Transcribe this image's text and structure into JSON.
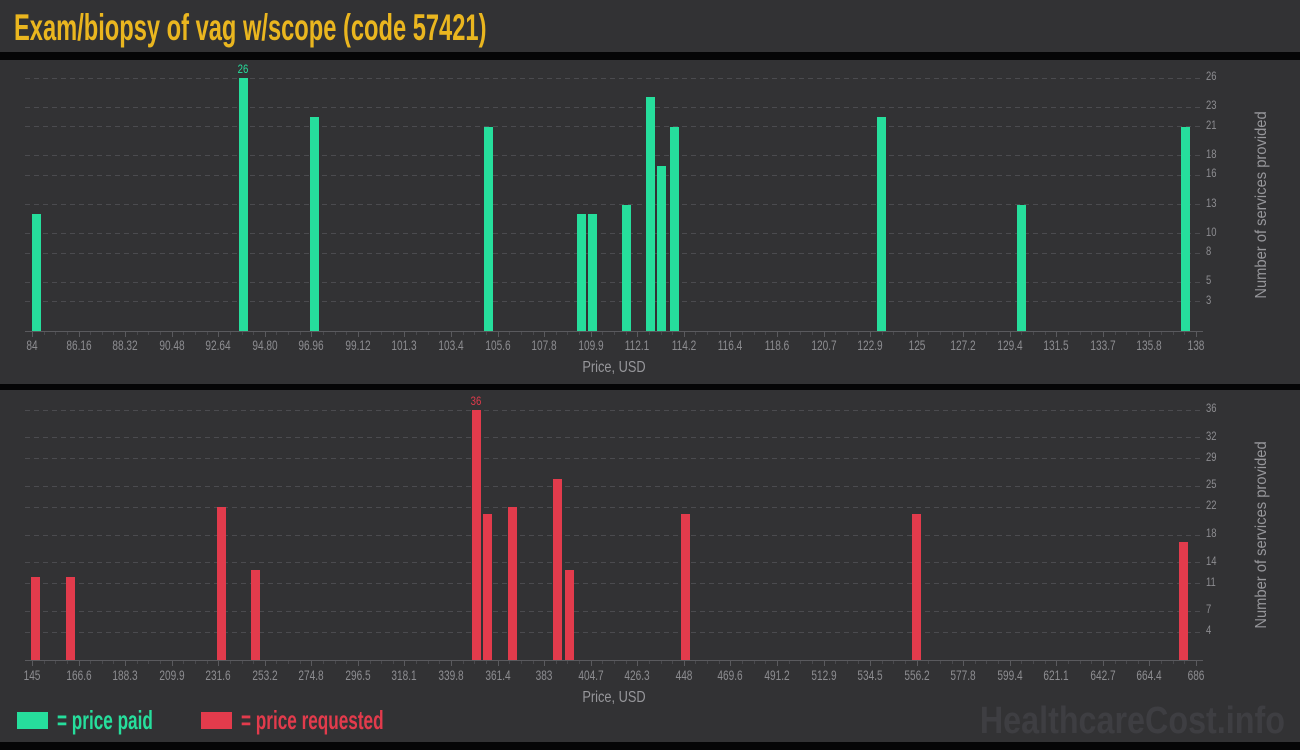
{
  "title": "Exam/biopsy of vag w/scope (code 57421)",
  "watermark": "HealthcareCost.info",
  "legend": {
    "paid_label": "= price paid",
    "requested_label": "= price requested"
  },
  "colors": {
    "paid": "#26DE9C",
    "requested": "#E23B4C",
    "title": "#EAB61F",
    "background": "#323234",
    "tick_label": "#8D8D91",
    "axis_title": "#97979B",
    "gridline": "#4B4B4F",
    "axis_line": "#5A5A5E",
    "watermark": "#3E3E42"
  },
  "chart_data": [
    {
      "type": "bar",
      "series_id": "price-paid",
      "series_name": "price paid",
      "color_key": "paid",
      "xlabel": "Price, USD",
      "ylabel": "Number of services provided",
      "x_range": [
        84,
        138
      ],
      "x_ticks": [
        "84",
        "86.16",
        "88.32",
        "90.48",
        "92.64",
        "94.80",
        "96.96",
        "99.12",
        "101.3",
        "103.4",
        "105.6",
        "107.8",
        "109.9",
        "112.1",
        "114.2",
        "116.4",
        "118.6",
        "120.7",
        "122.9",
        "125",
        "127.2",
        "129.4",
        "131.5",
        "133.7",
        "135.8",
        "138"
      ],
      "y_ticks": [
        3,
        5,
        8,
        10,
        13,
        16,
        18,
        21,
        23,
        26
      ],
      "y_max": 26,
      "max_bar_label": "26",
      "grid": true,
      "y_axis_side": "right",
      "bars": [
        {
          "price": 84.2,
          "count": 12
        },
        {
          "price": 93.8,
          "count": 26
        },
        {
          "price": 97.1,
          "count": 22
        },
        {
          "price": 105.2,
          "count": 21
        },
        {
          "price": 109.5,
          "count": 12
        },
        {
          "price": 110.0,
          "count": 12
        },
        {
          "price": 111.6,
          "count": 13
        },
        {
          "price": 112.7,
          "count": 24
        },
        {
          "price": 113.2,
          "count": 17
        },
        {
          "price": 113.8,
          "count": 21
        },
        {
          "price": 123.4,
          "count": 22
        },
        {
          "price": 129.9,
          "count": 13
        },
        {
          "price": 137.5,
          "count": 21
        }
      ]
    },
    {
      "type": "bar",
      "series_id": "price-requested",
      "series_name": "price requested",
      "color_key": "requested",
      "xlabel": "Price, USD",
      "ylabel": "Number of services provided",
      "x_range": [
        145,
        686
      ],
      "x_ticks": [
        "145",
        "166.6",
        "188.3",
        "209.9",
        "231.6",
        "253.2",
        "274.8",
        "296.5",
        "318.1",
        "339.8",
        "361.4",
        "383",
        "404.7",
        "426.3",
        "448",
        "469.6",
        "491.2",
        "512.9",
        "534.5",
        "556.2",
        "577.8",
        "599.4",
        "621.1",
        "642.7",
        "664.4",
        "686"
      ],
      "y_ticks": [
        4,
        7,
        11,
        14,
        18,
        22,
        25,
        29,
        32,
        36
      ],
      "y_max": 36,
      "max_bar_label": "36",
      "grid": true,
      "y_axis_side": "right",
      "bars": [
        {
          "price": 146.5,
          "count": 12
        },
        {
          "price": 162.7,
          "count": 12
        },
        {
          "price": 233.3,
          "count": 22
        },
        {
          "price": 249.1,
          "count": 13
        },
        {
          "price": 351.4,
          "count": 36
        },
        {
          "price": 356.5,
          "count": 21
        },
        {
          "price": 368.1,
          "count": 22
        },
        {
          "price": 389.3,
          "count": 26
        },
        {
          "price": 394.8,
          "count": 13
        },
        {
          "price": 448.5,
          "count": 21
        },
        {
          "price": 556.3,
          "count": 21
        },
        {
          "price": 680.0,
          "count": 17
        }
      ]
    }
  ]
}
